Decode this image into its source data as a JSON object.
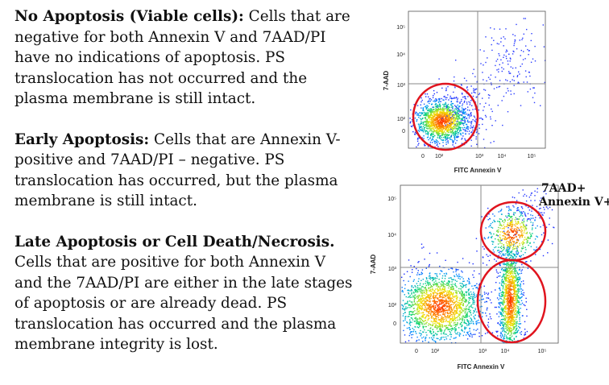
{
  "paragraphs": [
    {
      "heading": "No Apoptosis (Viable cells):",
      "body": " Cells that are negative for both Annexin V and 7AAD/PI have no indications of apoptosis. PS translocation has not occurred and the plasma membrane is still intact."
    },
    {
      "heading": "Early Apoptosis:",
      "body": " Cells that are Annexin V-positive and 7AAD/PI – negative. PS translocation has occurred, but the plasma membrane is still intact."
    },
    {
      "heading": "Late Apoptosis or Cell Death/Necrosis.",
      "body": " Cells that are positive for both Annexin V and the 7AAD/PI are either in the late stages of apoptosis or are already dead. PS translocation has occurred and the plasma membrane integrity is lost."
    }
  ],
  "plot_top": {
    "ylabel": "7-AAD",
    "xlabel": "FITC Annexin V",
    "y_ticks": [
      "10⁵",
      "10⁴",
      "10³",
      "10²",
      "0"
    ],
    "x_ticks": [
      "0",
      "10²",
      "10³",
      "10⁴",
      "10⁵"
    ]
  },
  "plot_bottom": {
    "ylabel": "7-AAD",
    "xlabel": "FITC Annexin V",
    "y_ticks": [
      "10⁵",
      "10⁴",
      "10³",
      "10²",
      "0"
    ],
    "x_ticks": [
      "0",
      "10²",
      "10³",
      "10⁴",
      "10⁵"
    ]
  },
  "annotation": {
    "line1": "7AAD+",
    "line2": "Annexin V+"
  },
  "colors": {
    "gate_circle": "#e0141e",
    "quadrant_line": "#8a8a8a",
    "population_core": "#ff3b00",
    "population_edge": "#1a2cff"
  }
}
